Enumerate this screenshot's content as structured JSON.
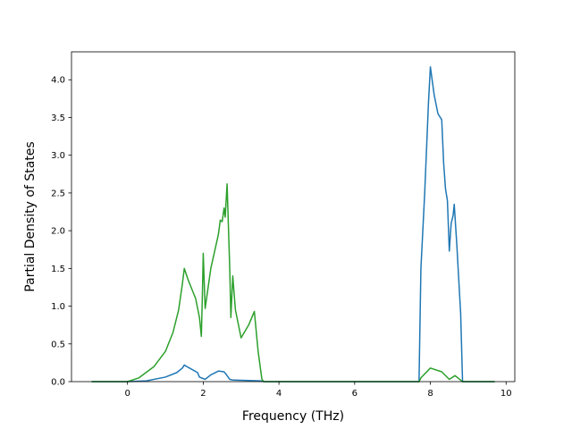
{
  "chart_data": {
    "type": "line",
    "xlabel": "Frequency (THz)",
    "ylabel": "Partial Density of States",
    "xlim": [
      -1.48,
      10.23
    ],
    "ylim": [
      0,
      4.37
    ],
    "xticks": [
      0,
      2,
      4,
      6,
      8,
      10
    ],
    "yticks": [
      {
        "value": 0,
        "label": "0.0"
      },
      0.5,
      {
        "value": 1,
        "label": "1.0"
      },
      1.5,
      {
        "value": 2,
        "label": "2.0"
      },
      2.5,
      {
        "value": 3,
        "label": "3.0"
      },
      3.5,
      {
        "value": 4,
        "label": "4.0"
      }
    ],
    "grid": false,
    "series": [
      {
        "color": "#1f77b4",
        "x": [
          -0.95,
          0,
          0.5,
          1.0,
          1.3,
          1.45,
          1.5,
          1.6,
          1.85,
          1.9,
          2.0,
          2.05,
          2.2,
          2.4,
          2.55,
          2.6,
          2.7,
          2.8,
          3.5,
          3.6,
          7.7,
          7.75,
          7.85,
          7.95,
          8.0,
          8.1,
          8.2,
          8.3,
          8.35,
          8.4,
          8.45,
          8.5,
          8.55,
          8.6,
          8.63,
          8.7,
          8.8,
          8.85,
          9.7
        ],
        "values": [
          0,
          0,
          0.01,
          0.06,
          0.12,
          0.18,
          0.22,
          0.19,
          0.12,
          0.06,
          0.04,
          0.03,
          0.09,
          0.14,
          0.13,
          0.1,
          0.03,
          0.02,
          0.01,
          0,
          0,
          1.5,
          2.5,
          3.7,
          4.17,
          3.8,
          3.55,
          3.47,
          2.9,
          2.55,
          2.4,
          1.73,
          2.1,
          2.2,
          2.35,
          1.8,
          0.9,
          0,
          0
        ]
      },
      {
        "color": "#2ca02c",
        "x": [
          -0.95,
          0,
          0.3,
          0.7,
          1.0,
          1.2,
          1.35,
          1.45,
          1.5,
          1.6,
          1.8,
          1.9,
          1.95,
          1.98,
          2.0,
          2.05,
          2.2,
          2.4,
          2.45,
          2.5,
          2.55,
          2.58,
          2.63,
          2.7,
          2.73,
          2.78,
          2.85,
          3.0,
          3.2,
          3.35,
          3.45,
          3.55,
          3.6,
          7.7,
          7.75,
          8.0,
          8.3,
          8.5,
          8.65,
          8.8,
          8.85,
          9.7
        ],
        "values": [
          0,
          0,
          0.05,
          0.2,
          0.4,
          0.65,
          0.95,
          1.3,
          1.5,
          1.35,
          1.1,
          0.85,
          0.6,
          1.2,
          1.7,
          0.97,
          1.5,
          1.95,
          2.14,
          2.12,
          2.3,
          2.18,
          2.62,
          1.5,
          0.85,
          1.4,
          0.95,
          0.58,
          0.75,
          0.93,
          0.4,
          0.03,
          0,
          0,
          0.05,
          0.18,
          0.13,
          0.03,
          0.08,
          0.02,
          0,
          0
        ]
      }
    ]
  }
}
